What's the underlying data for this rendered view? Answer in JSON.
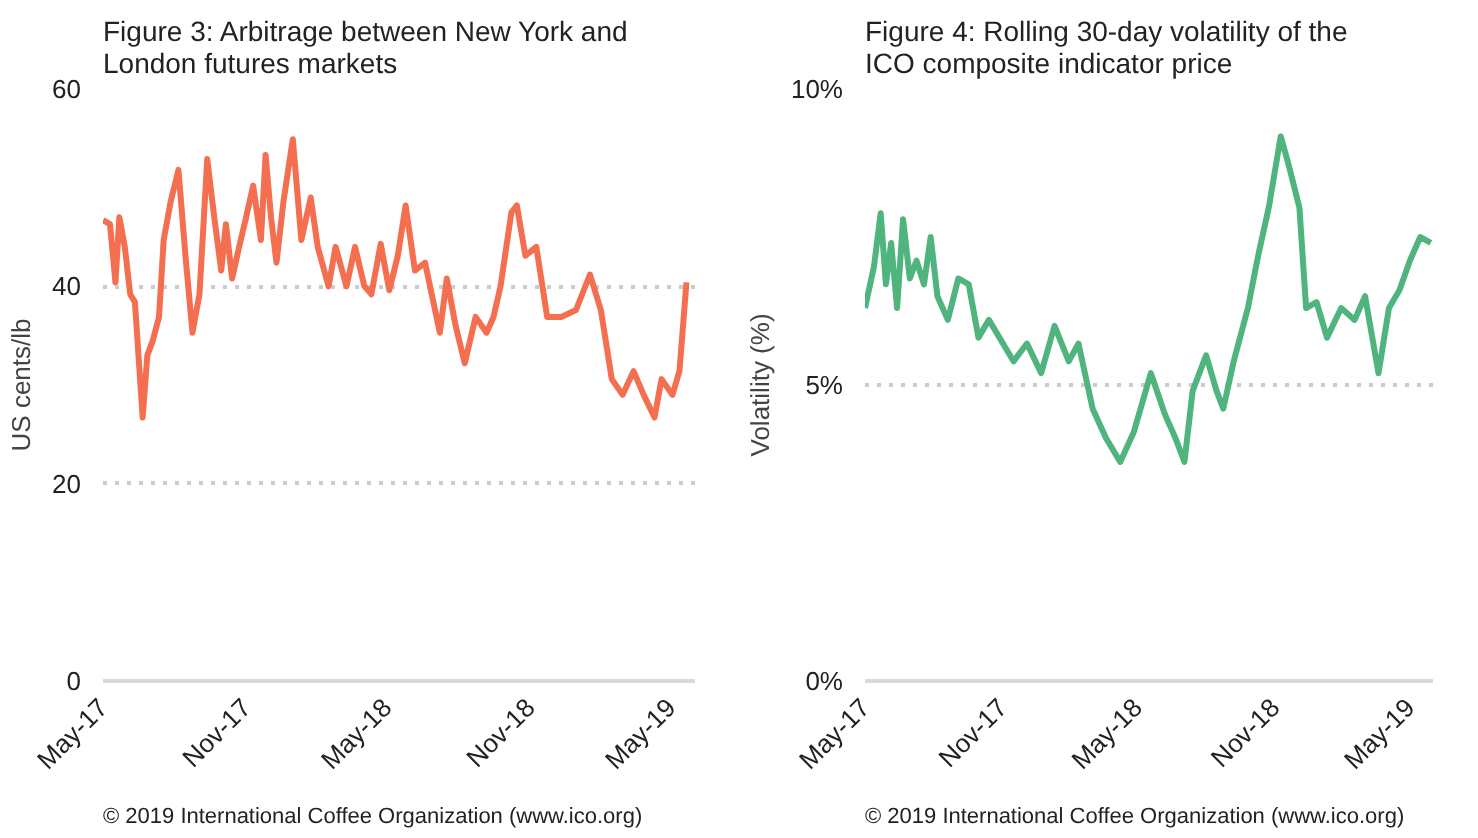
{
  "chart_data": [
    {
      "type": "line",
      "title": "Figure 3:   Arbitrage between New York and London futures markets",
      "ylabel": "US cents/lb",
      "x": [
        "2017-05-01",
        "2017-05-10",
        "2017-05-17",
        "2017-05-22",
        "2017-05-29",
        "2017-06-05",
        "2017-06-11",
        "2017-06-21",
        "2017-06-27",
        "2017-07-04",
        "2017-07-12",
        "2017-07-18",
        "2017-07-27",
        "2017-08-06",
        "2017-08-15",
        "2017-08-24",
        "2017-09-02",
        "2017-09-12",
        "2017-09-21",
        "2017-09-30",
        "2017-10-06",
        "2017-10-14",
        "2017-10-23",
        "2017-11-01",
        "2017-11-10",
        "2017-11-20",
        "2017-11-26",
        "2017-12-03",
        "2017-12-10",
        "2017-12-19",
        "2017-12-31",
        "2018-01-11",
        "2018-01-23",
        "2018-02-01",
        "2018-02-15",
        "2018-02-24",
        "2018-03-10",
        "2018-03-21",
        "2018-04-02",
        "2018-04-11",
        "2018-04-23",
        "2018-05-04",
        "2018-05-15",
        "2018-05-25",
        "2018-06-06",
        "2018-06-19",
        "2018-07-08",
        "2018-07-17",
        "2018-07-28",
        "2018-08-09",
        "2018-08-23",
        "2018-09-06",
        "2018-09-15",
        "2018-09-24",
        "2018-10-08",
        "2018-10-15",
        "2018-10-26",
        "2018-11-09",
        "2018-11-23",
        "2018-12-11",
        "2018-12-30",
        "2019-01-17",
        "2019-01-31",
        "2019-02-14",
        "2019-02-28",
        "2019-03-14",
        "2019-03-27",
        "2019-04-10",
        "2019-04-19",
        "2019-05-03",
        "2019-05-12",
        "2019-05-21"
      ],
      "series": [
        {
          "color": "#f46f50",
          "values": [
            46.7,
            46.3,
            40.4,
            47,
            44,
            39.2,
            38.4,
            26.7,
            33,
            34.5,
            36.9,
            44.7,
            48.6,
            51.8,
            43.1,
            35.3,
            39.2,
            52.9,
            47,
            41.6,
            46.3,
            40.8,
            44,
            47,
            50.2,
            44.7,
            53.3,
            47,
            42.4,
            48.6,
            54.9,
            44.7,
            49,
            44,
            40,
            44,
            40,
            44,
            40,
            39.2,
            44.3,
            39.6,
            43.1,
            48.2,
            41.6,
            42.4,
            35.3,
            40.8,
            36.1,
            32.2,
            36.9,
            35.3,
            36.9,
            40,
            47.5,
            48.2,
            43.1,
            44,
            36.9,
            36.9,
            37.6,
            41.2,
            37.6,
            30.6,
            29,
            31.4,
            29,
            26.7,
            30.6,
            29,
            31.4,
            40.4
          ]
        }
      ],
      "xlim": [
        "2017-05-01",
        "2019-06-01"
      ],
      "xticks": [
        {
          "value": "2017-05-01",
          "label": "May-17"
        },
        {
          "value": "2017-11-01",
          "label": "Nov-17"
        },
        {
          "value": "2018-05-01",
          "label": "May-18"
        },
        {
          "value": "2018-11-01",
          "label": "Nov-18"
        },
        {
          "value": "2019-05-01",
          "label": "May-19"
        }
      ],
      "ylim": [
        0,
        60
      ],
      "yticks": [
        0,
        20,
        40,
        60
      ],
      "grid": "y",
      "annotations": [
        "© 2019 International Coffee Organization (www.ico.org)"
      ]
    },
    {
      "type": "line",
      "title": "Figure 4:   Rolling 30-day volatility of the ICO composite indicator price",
      "ylabel": "Volatility (%)",
      "x": [
        "2017-05-01",
        "2017-05-13",
        "2017-05-22",
        "2017-05-29",
        "2017-06-05",
        "2017-06-13",
        "2017-06-21",
        "2017-06-30",
        "2017-07-09",
        "2017-07-19",
        "2017-07-28",
        "2017-08-06",
        "2017-08-20",
        "2017-09-03",
        "2017-09-17",
        "2017-09-30",
        "2017-10-14",
        "2017-11-16",
        "2017-12-04",
        "2017-12-23",
        "2018-01-10",
        "2018-01-29",
        "2018-02-11",
        "2018-03-02",
        "2018-03-20",
        "2018-04-08",
        "2018-04-26",
        "2018-05-19",
        "2018-06-07",
        "2018-06-21",
        "2018-07-03",
        "2018-07-14",
        "2018-08-01",
        "2018-08-15",
        "2018-08-24",
        "2018-09-07",
        "2018-09-26",
        "2018-10-10",
        "2018-10-24",
        "2018-11-09",
        "2018-11-20",
        "2018-12-04",
        "2018-12-13",
        "2018-12-27",
        "2019-01-10",
        "2019-01-29",
        "2019-02-16",
        "2019-03-02",
        "2019-03-20",
        "2019-04-03",
        "2019-04-17",
        "2019-05-01",
        "2019-05-15",
        "2019-05-29"
      ],
      "series": [
        {
          "color": "#4fb47e",
          "values": [
            6.3,
            7.0,
            7.9,
            6.7,
            7.4,
            6.3,
            7.8,
            6.8,
            7.1,
            6.7,
            7.5,
            6.5,
            6.1,
            6.8,
            6.7,
            5.8,
            6.1,
            5.4,
            5.7,
            5.2,
            6.0,
            5.4,
            5.7,
            4.6,
            4.1,
            3.7,
            4.2,
            5.2,
            4.5,
            4.1,
            3.7,
            4.9,
            5.5,
            4.9,
            4.6,
            5.4,
            6.3,
            7.2,
            8.0,
            9.2,
            8.7,
            8.0,
            6.3,
            6.4,
            5.8,
            6.3,
            6.1,
            6.5,
            5.2,
            6.3,
            6.6,
            7.1,
            7.5,
            7.4
          ]
        }
      ],
      "xlim": [
        "2017-05-01",
        "2019-06-01"
      ],
      "xticks": [
        {
          "value": "2017-05-01",
          "label": "May-17"
        },
        {
          "value": "2017-11-01",
          "label": "Nov-17"
        },
        {
          "value": "2018-05-01",
          "label": "May-18"
        },
        {
          "value": "2018-11-01",
          "label": "Nov-18"
        },
        {
          "value": "2019-05-01",
          "label": "May-19"
        }
      ],
      "ylim": [
        0,
        10
      ],
      "yticks": [
        {
          "value": 0,
          "label": "0%"
        },
        {
          "value": 5,
          "label": "5%"
        },
        {
          "value": 10,
          "label": "10%"
        }
      ],
      "grid": "y",
      "annotations": [
        "© 2019 International Coffee Organization (www.ico.org)"
      ]
    }
  ]
}
